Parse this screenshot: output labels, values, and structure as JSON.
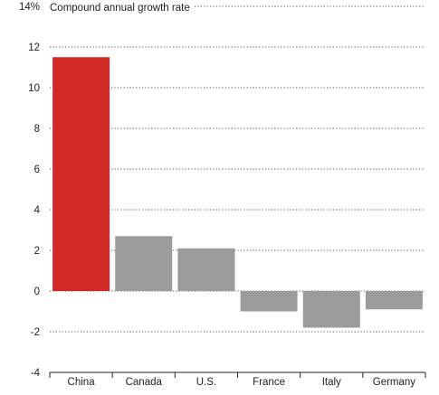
{
  "chart_data": {
    "type": "bar",
    "title": "Compound annual growth rate",
    "ylabel": "",
    "xlabel": "",
    "ylim": [
      -4,
      14
    ],
    "yticks": [
      {
        "value": 14,
        "label": "14%"
      },
      {
        "value": 12,
        "label": "12"
      },
      {
        "value": 10,
        "label": "10"
      },
      {
        "value": 8,
        "label": "8"
      },
      {
        "value": 6,
        "label": "6"
      },
      {
        "value": 4,
        "label": "4"
      },
      {
        "value": 2,
        "label": "2"
      },
      {
        "value": 0,
        "label": "0"
      },
      {
        "value": -2,
        "label": "-2"
      },
      {
        "value": -4,
        "label": "-4"
      }
    ],
    "grid": true,
    "categories": [
      "China",
      "Canada",
      "U.S.",
      "France",
      "Italy",
      "Germany"
    ],
    "values": [
      11.5,
      2.7,
      2.1,
      -1.0,
      -1.8,
      -0.9
    ],
    "colors": [
      "#d22b27",
      "#9b9b9b",
      "#9b9b9b",
      "#9b9b9b",
      "#9b9b9b",
      "#9b9b9b"
    ]
  }
}
